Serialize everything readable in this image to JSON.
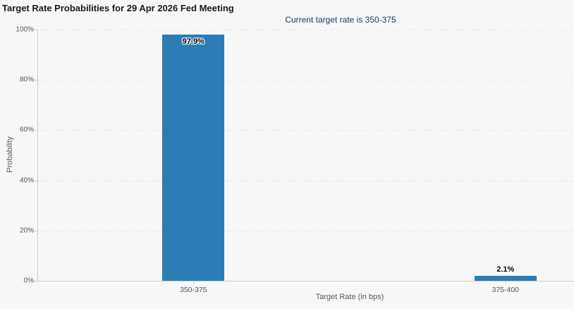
{
  "header": {
    "title": "Target Rate Probabilities for 29 Apr 2026 Fed Meeting"
  },
  "chart_data": {
    "type": "bar",
    "title": "Target Rate Probabilities for 29 Apr 2026 Fed Meeting",
    "subtitle": "Current target rate is 350-375",
    "categories": [
      "350-375",
      "375-400"
    ],
    "values": [
      97.9,
      2.1
    ],
    "value_labels": [
      "97.9%",
      "2.1%"
    ],
    "xlabel": "Target Rate (in bps)",
    "ylabel": "Probability",
    "ylim": [
      0,
      100
    ],
    "yticks": [
      0,
      20,
      40,
      60,
      80,
      100
    ],
    "ytick_labels": [
      "0%",
      "20%",
      "40%",
      "60%",
      "80%",
      "100%"
    ],
    "grid": "horizontal-dotted",
    "legend": "none",
    "colors": {
      "bar": "#2c7cb5",
      "subtitle_text": "#1f3864",
      "axis_text": "#555555",
      "axis_line": "#cccccc",
      "grid_line": "#dcdcdc",
      "background": "#f7f7f8",
      "bar_label_text": "#000000"
    }
  }
}
